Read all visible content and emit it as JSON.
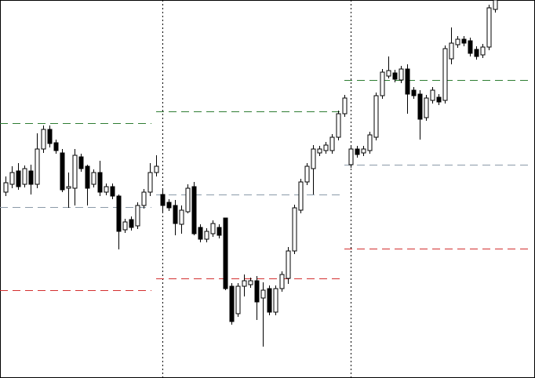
{
  "chart_data": {
    "type": "candlestick",
    "ylim": [
      0,
      482
    ],
    "up_color": "#ffffff",
    "down_color": "#000000",
    "outline_color": "#000000",
    "open": [
      237,
      247,
      264,
      247,
      264,
      247,
      292,
      317,
      300,
      287,
      242,
      242,
      282,
      270,
      247,
      262,
      237,
      244,
      232,
      189,
      202,
      194,
      220,
      237,
      262,
      234,
      224,
      220,
      196,
      212,
      244,
      192,
      177,
      184,
      192,
      204,
      117,
      82,
      117,
      119,
      124,
      102,
      114,
      84,
      114,
      127,
      162,
      214,
      250,
      267,
      287,
      290,
      290,
      307,
      337,
      272,
      292,
      287,
      290,
      307,
      360,
      385,
      389,
      380,
      394,
      367,
      362,
      332,
      354,
      358,
      354,
      407,
      425,
      432,
      430,
      419,
      412,
      422,
      470
    ],
    "high": [
      257,
      270,
      274,
      271,
      272,
      312,
      322,
      322,
      304,
      292,
      262,
      292,
      286,
      272,
      266,
      277,
      248,
      248,
      234,
      203,
      206,
      224,
      241,
      274,
      284,
      242,
      228,
      227,
      220,
      247,
      250,
      196,
      191,
      201,
      196,
      204,
      121,
      121,
      132,
      128,
      130,
      122,
      118,
      118,
      136,
      167,
      221,
      254,
      274,
      297,
      296,
      301,
      311,
      341,
      361,
      296,
      296,
      296,
      314,
      364,
      394,
      410,
      393,
      398,
      400,
      371,
      367,
      361,
      371,
      362,
      424,
      447,
      436,
      436,
      434,
      423,
      426,
      476,
      482
    ],
    "low": [
      232,
      242,
      240,
      243,
      234,
      242,
      287,
      294,
      286,
      237,
      217,
      220,
      263,
      220,
      243,
      232,
      233,
      228,
      164,
      185,
      188,
      190,
      216,
      232,
      257,
      212,
      213,
      182,
      184,
      210,
      182,
      173,
      173,
      180,
      178,
      112,
      68,
      78,
      104,
      115,
      74,
      40,
      80,
      80,
      110,
      120,
      158,
      210,
      246,
      234,
      283,
      286,
      286,
      303,
      333,
      268,
      281,
      283,
      286,
      303,
      356,
      382,
      377,
      376,
      337,
      356,
      304,
      328,
      350,
      348,
      350,
      400,
      421,
      423,
      410,
      406,
      408,
      418,
      466
    ],
    "close": [
      249,
      262,
      244,
      267,
      247,
      292,
      317,
      299,
      290,
      240,
      244,
      284,
      267,
      242,
      262,
      237,
      244,
      232,
      187,
      199,
      192,
      220,
      237,
      262,
      270,
      220,
      217,
      197,
      214,
      242,
      184,
      177,
      187,
      197,
      182,
      114,
      72,
      117,
      124,
      124,
      97,
      112,
      84,
      114,
      132,
      162,
      217,
      250,
      270,
      292,
      292,
      297,
      307,
      337,
      357,
      292,
      285,
      292,
      310,
      360,
      390,
      392,
      381,
      394,
      362,
      360,
      330,
      357,
      367,
      352,
      420,
      427,
      432,
      427,
      414,
      410,
      422,
      472,
      482
    ],
    "level_colors": {
      "high": "#2e7d32",
      "pivot": "#8a9aa8",
      "low": "#d32f2f"
    },
    "sessions": [
      {
        "first": 0,
        "count": 25,
        "high": 325,
        "pivot": 218,
        "low": 112
      },
      {
        "first": 25,
        "count": 30,
        "high": 340,
        "pivot": 234,
        "low": 127
      },
      {
        "first": 55,
        "count": 24,
        "high": 380,
        "pivot": 272,
        "low": 165
      }
    ]
  }
}
